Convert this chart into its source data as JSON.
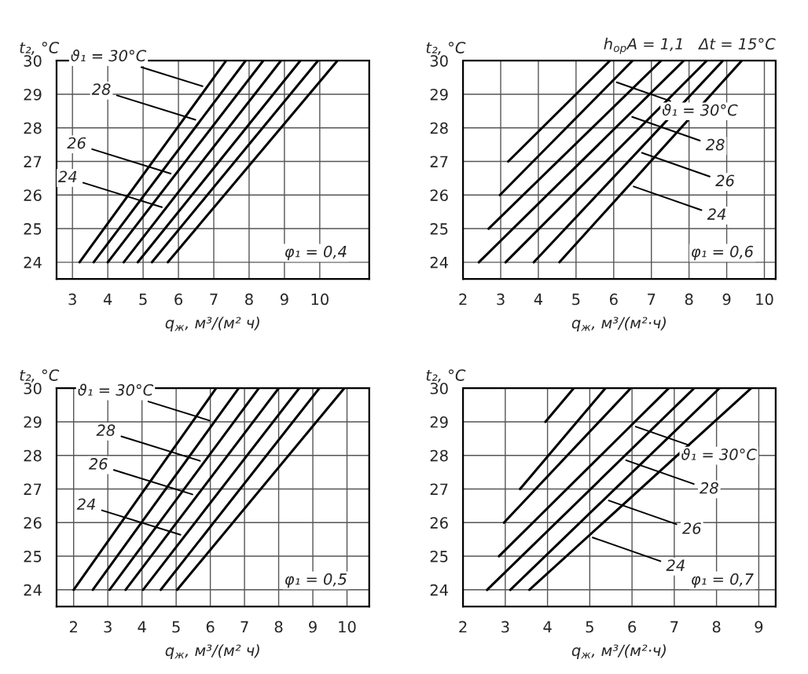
{
  "chart_data": [
    {
      "type": "line",
      "xlabel": "q$_{ж}$, м³/(м² ч)",
      "ylabel": "t₂, °C",
      "xlim": [
        2.55,
        11.4
      ],
      "ylim": [
        23.5,
        30
      ],
      "xticks": [
        3,
        4,
        5,
        6,
        7,
        8,
        9,
        10
      ],
      "yticks": [
        24,
        25,
        26,
        27,
        28,
        29,
        30
      ],
      "grid": true,
      "line_style": "solid",
      "series": [
        {
          "color": "#000000",
          "x": [
            3.2,
            7.35
          ],
          "values": [
            24,
            30
          ]
        },
        {
          "color": "#000000",
          "x": [
            3.6,
            7.9
          ],
          "values": [
            24,
            30
          ]
        },
        {
          "color": "#000000",
          "x": [
            4.0,
            8.4
          ],
          "values": [
            24,
            30
          ]
        },
        {
          "color": "#000000",
          "x": [
            4.45,
            8.9
          ],
          "values": [
            24,
            30
          ]
        },
        {
          "color": "#000000",
          "x": [
            4.85,
            9.45
          ],
          "values": [
            24,
            30
          ]
        },
        {
          "color": "#000000",
          "x": [
            5.25,
            9.95
          ],
          "values": [
            24,
            30
          ]
        },
        {
          "color": "#000000",
          "x": [
            5.7,
            10.5
          ],
          "values": [
            24,
            30
          ]
        }
      ],
      "annotations": [
        {
          "text": "ϑ₁ = 30°C",
          "x": 6.8,
          "y": 29.2
        },
        {
          "text": "28",
          "x": 6.6,
          "y": 28.2
        },
        {
          "text": "26",
          "x": 5.9,
          "y": 26.6
        },
        {
          "text": "24",
          "x": 5.65,
          "y": 25.6
        },
        "φ₁ = 0,4"
      ]
    },
    {
      "type": "line",
      "xlabel": "q$_{ж}$, м³/(м²·ч)",
      "ylabel": "t₂, °C",
      "xlim": [
        2,
        10.3
      ],
      "ylim": [
        23.5,
        30
      ],
      "xticks": [
        2,
        3,
        4,
        5,
        6,
        7,
        8,
        9,
        10
      ],
      "yticks": [
        24,
        25,
        26,
        27,
        28,
        29,
        30
      ],
      "grid": true,
      "line_style": "solid",
      "series": [
        {
          "color": "#000000",
          "x": [
            3.2,
            5.9
          ],
          "values": [
            27,
            30
          ]
        },
        {
          "color": "#000000",
          "x": [
            2.98,
            6.5
          ],
          "values": [
            26,
            30
          ]
        },
        {
          "color": "#000000",
          "x": [
            2.68,
            7.26
          ],
          "values": [
            25,
            30
          ]
        },
        {
          "color": "#000000",
          "x": [
            2.42,
            7.86
          ],
          "values": [
            24,
            30
          ]
        },
        {
          "color": "#000000",
          "x": [
            3.13,
            8.47
          ],
          "values": [
            24,
            30
          ]
        },
        {
          "color": "#000000",
          "x": [
            3.88,
            8.9
          ],
          "values": [
            24,
            30
          ]
        },
        {
          "color": "#000000",
          "x": [
            4.56,
            9.4
          ],
          "values": [
            24,
            30
          ]
        }
      ],
      "annotations": [
        {
          "text": "ϑ₁ = 30°C",
          "x": 5.97,
          "y": 29.4
        },
        {
          "text": "28",
          "x": 6.38,
          "y": 28.37
        },
        {
          "text": "26",
          "x": 6.64,
          "y": 27.3
        },
        {
          "text": "24",
          "x": 6.42,
          "y": 26.3
        },
        "φ₁ = 0,6",
        "h$_{ор}$A = 1,1   Δt = 15°C"
      ]
    },
    {
      "type": "line",
      "xlabel": "q$_{ж}$, м³/(м² ч)",
      "ylabel": "t₂, °C",
      "xlim": [
        1.5,
        10.65
      ],
      "ylim": [
        23.5,
        30
      ],
      "xticks": [
        2,
        3,
        4,
        5,
        6,
        7,
        8,
        9,
        10
      ],
      "yticks": [
        24,
        25,
        26,
        27,
        28,
        29,
        30
      ],
      "grid": true,
      "line_style": "solid",
      "series": [
        {
          "color": "#000000",
          "x": [
            2.0,
            6.17
          ],
          "values": [
            24,
            30
          ]
        },
        {
          "color": "#000000",
          "x": [
            2.56,
            6.83
          ],
          "values": [
            24,
            30
          ]
        },
        {
          "color": "#000000",
          "x": [
            3.05,
            7.42
          ],
          "values": [
            24,
            30
          ]
        },
        {
          "color": "#000000",
          "x": [
            3.52,
            8.0
          ],
          "values": [
            24,
            30
          ]
        },
        {
          "color": "#000000",
          "x": [
            4.03,
            8.6
          ],
          "values": [
            24,
            30
          ]
        },
        {
          "color": "#000000",
          "x": [
            4.55,
            9.19
          ],
          "values": [
            24,
            30
          ]
        },
        {
          "color": "#000000",
          "x": [
            5.03,
            9.92
          ],
          "values": [
            24,
            30
          ]
        }
      ],
      "annotations": [
        {
          "text": "ϑ₁ = 30°C",
          "x": 6.1,
          "y": 29.0
        },
        {
          "text": "28",
          "x": 5.82,
          "y": 27.8
        },
        {
          "text": "26",
          "x": 5.6,
          "y": 26.8
        },
        {
          "text": "24",
          "x": 5.25,
          "y": 25.6
        },
        "φ₁ = 0,5"
      ]
    },
    {
      "type": "line",
      "xlabel": "q$_{ж}$, м³/(м²·ч)",
      "ylabel": "t₂, °C",
      "xlim": [
        2,
        9.4
      ],
      "ylim": [
        23.5,
        30
      ],
      "xticks": [
        2,
        3,
        4,
        5,
        6,
        7,
        8,
        9
      ],
      "yticks": [
        24,
        25,
        26,
        27,
        28,
        29,
        30
      ],
      "grid": true,
      "line_style": "solid",
      "series": [
        {
          "color": "#000000",
          "x": [
            3.95,
            4.62
          ],
          "values": [
            29,
            30
          ]
        },
        {
          "color": "#000000",
          "x": [
            3.35,
            5.37
          ],
          "values": [
            27,
            30
          ]
        },
        {
          "color": "#000000",
          "x": [
            2.97,
            5.97
          ],
          "values": [
            26,
            30
          ]
        },
        {
          "color": "#000000",
          "x": [
            2.85,
            6.87
          ],
          "values": [
            25,
            30
          ]
        },
        {
          "color": "#000000",
          "x": [
            2.57,
            7.47
          ],
          "values": [
            24,
            30
          ]
        },
        {
          "color": "#000000",
          "x": [
            3.12,
            8.07
          ],
          "values": [
            24,
            30
          ]
        },
        {
          "color": "#000000",
          "x": [
            3.57,
            8.82
          ],
          "values": [
            24,
            30
          ]
        }
      ],
      "annotations": [
        {
          "text": "ϑ₁ = 30°C",
          "x": 5.99,
          "y": 28.9
        },
        {
          "text": "28",
          "x": 5.76,
          "y": 27.9
        },
        {
          "text": "26",
          "x": 5.35,
          "y": 26.7
        },
        {
          "text": "24",
          "x": 4.97,
          "y": 25.6
        },
        "φ₁ = 0,7"
      ]
    }
  ]
}
